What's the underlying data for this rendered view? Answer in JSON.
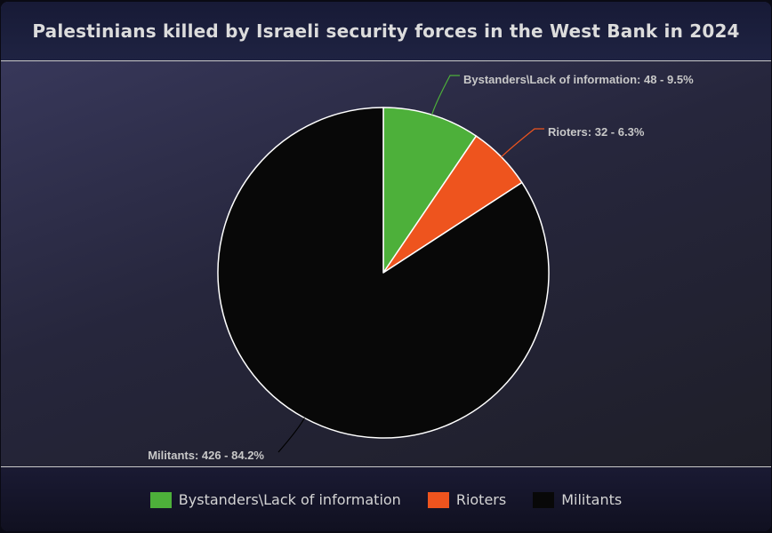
{
  "chart_data": {
    "type": "pie",
    "title": "Palestinians killed by Israeli security forces in the West Bank in 2024",
    "slices": [
      {
        "label": "Bystanders\\Lack of information",
        "value": 48,
        "percent": "9.5%",
        "color": "#4db03a"
      },
      {
        "label": "Rioters",
        "value": 32,
        "percent": "6.3%",
        "color": "#ee541e"
      },
      {
        "label": "Militants",
        "value": 426,
        "percent": "84.2%",
        "color": "#080808"
      }
    ],
    "data_labels": [
      "Bystanders\\Lack of information: 48 - 9.5%",
      "Rioters: 32 - 6.3%",
      "Militants: 426 - 84.2%"
    ],
    "legend_position": "bottom"
  }
}
